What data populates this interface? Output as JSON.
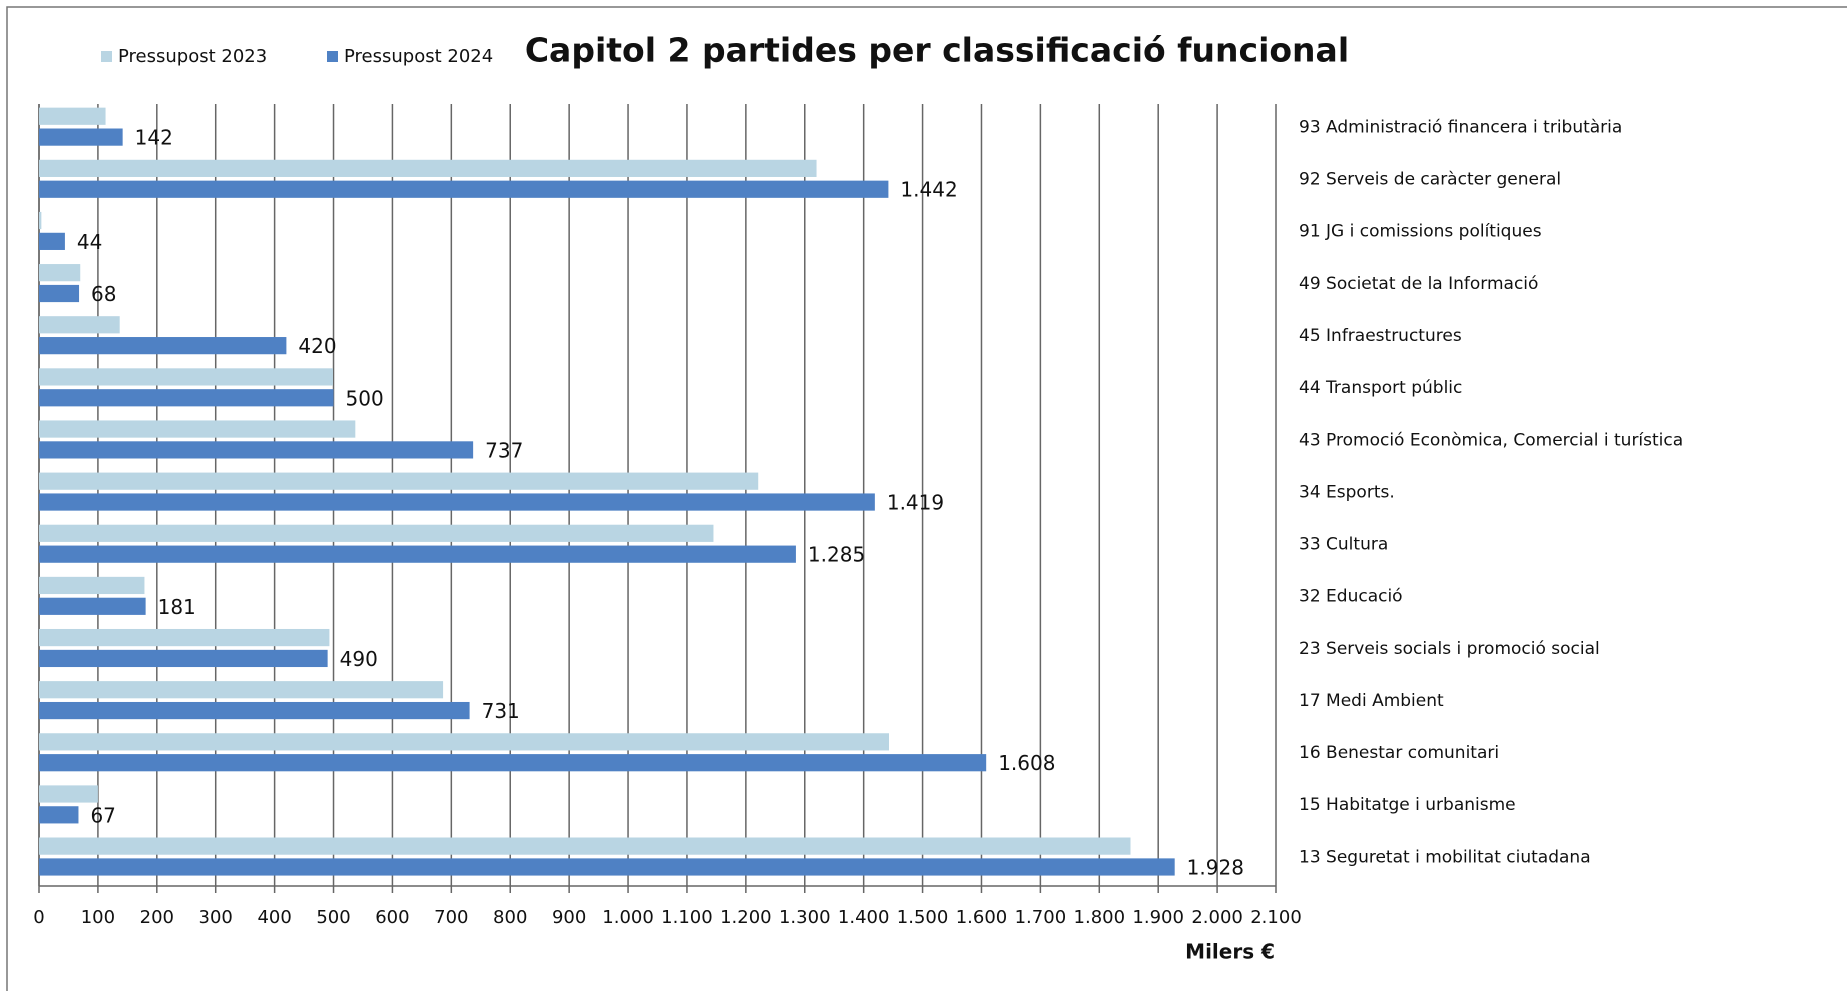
{
  "chart_data": {
    "type": "bar",
    "orientation": "horizontal",
    "title": "Capitol 2 partides per classificació funcional",
    "x_label": "Milers €",
    "categories": [
      "93 Administració financera i tributària",
      "92 Serveis de caràcter general",
      "91 JG i comissions polítiques",
      "49 Societat de la Informació",
      "45 Infraestructures",
      "44 Transport públic",
      "43 Promoció Econòmica, Comercial i turística",
      "34 Esports.",
      "33 Cultura",
      "32 Educació",
      "23 Serveis socials i promoció social",
      "17 Medi Ambient",
      "16 Benestar comunitari",
      "15 Habitatge i urbanisme",
      "13 Seguretat i mobilitat ciutadana"
    ],
    "series": [
      {
        "name": "Pressupost 2023",
        "color": "#b9d5e3",
        "values": [
          113,
          1320,
          4,
          70,
          137,
          499,
          537,
          1221,
          1145,
          179,
          493,
          686,
          1443,
          100,
          1853
        ]
      },
      {
        "name": "Pressupost 2024",
        "color": "#4f81c4",
        "values": [
          142,
          1442,
          44,
          68,
          420,
          500,
          737,
          1419,
          1285,
          181,
          490,
          731,
          1608,
          67,
          1928
        ],
        "value_labels": [
          "142",
          "1.442",
          "44",
          "68",
          "420",
          "500",
          "737",
          "1.419",
          "1.285",
          "181",
          "490",
          "731",
          "1.608",
          "67",
          "1.928"
        ]
      }
    ],
    "xlim": [
      0,
      2100
    ],
    "xticks": [
      0,
      100,
      200,
      300,
      400,
      500,
      600,
      700,
      800,
      900,
      {
        "value": 1000,
        "label": "1.000"
      },
      {
        "value": 1100,
        "label": "1.100"
      },
      {
        "value": 1200,
        "label": "1.200"
      },
      {
        "value": 1300,
        "label": "1.300"
      },
      {
        "value": 1400,
        "label": "1.400"
      },
      {
        "value": 1500,
        "label": "1.500"
      },
      {
        "value": 1600,
        "label": "1.600"
      },
      {
        "value": 1700,
        "label": "1.700"
      },
      {
        "value": 1800,
        "label": "1.800"
      },
      {
        "value": 1900,
        "label": "1.900"
      },
      {
        "value": 2000,
        "label": "2.000"
      },
      {
        "value": 2100,
        "label": "2.100"
      }
    ],
    "grid": true,
    "legend": "top-left"
  }
}
